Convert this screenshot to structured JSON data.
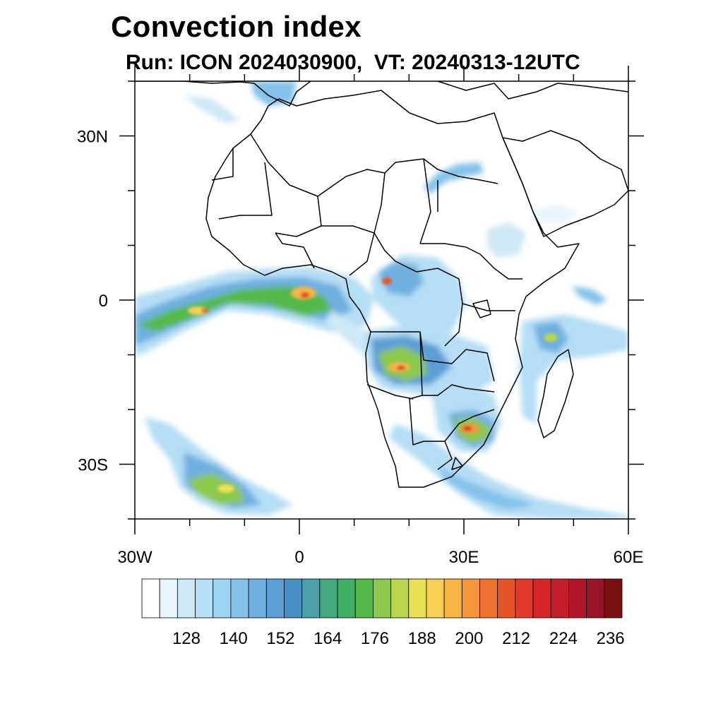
{
  "title": "Convection index",
  "subtitle": "Run: ICON 2024030900,  VT: 20240313-12UTC",
  "map": {
    "lon_range": [
      -30,
      60
    ],
    "lat_range": [
      -40,
      40
    ],
    "x_ticks": [
      {
        "lon": -30,
        "label": "30W"
      },
      {
        "lon": 0,
        "label": "0"
      },
      {
        "lon": 30,
        "label": "30E"
      },
      {
        "lon": 60,
        "label": "60E"
      }
    ],
    "y_ticks": [
      {
        "lat": 30,
        "label": "30N"
      },
      {
        "lat": 0,
        "label": "0"
      },
      {
        "lat": -30,
        "label": "30S"
      }
    ],
    "minor_tick_step_deg": 10
  },
  "colorbar": {
    "labels": [
      "128",
      "140",
      "152",
      "164",
      "176",
      "188",
      "200",
      "212",
      "224",
      "236"
    ],
    "colors": [
      "#ffffff",
      "#e8f4fb",
      "#cde8f6",
      "#b6def6",
      "#9dd3f3",
      "#84c2ea",
      "#6fb0e0",
      "#5b9fd6",
      "#4790c6",
      "#4a9fa8",
      "#44a780",
      "#3fad62",
      "#54b948",
      "#8cc84b",
      "#b9d54c",
      "#e8e155",
      "#f7cf55",
      "#f8b444",
      "#f5953a",
      "#ee7230",
      "#e8542a",
      "#e23a2b",
      "#d7262b",
      "#c51d2c",
      "#b0182a",
      "#981527",
      "#7a1012"
    ]
  }
}
